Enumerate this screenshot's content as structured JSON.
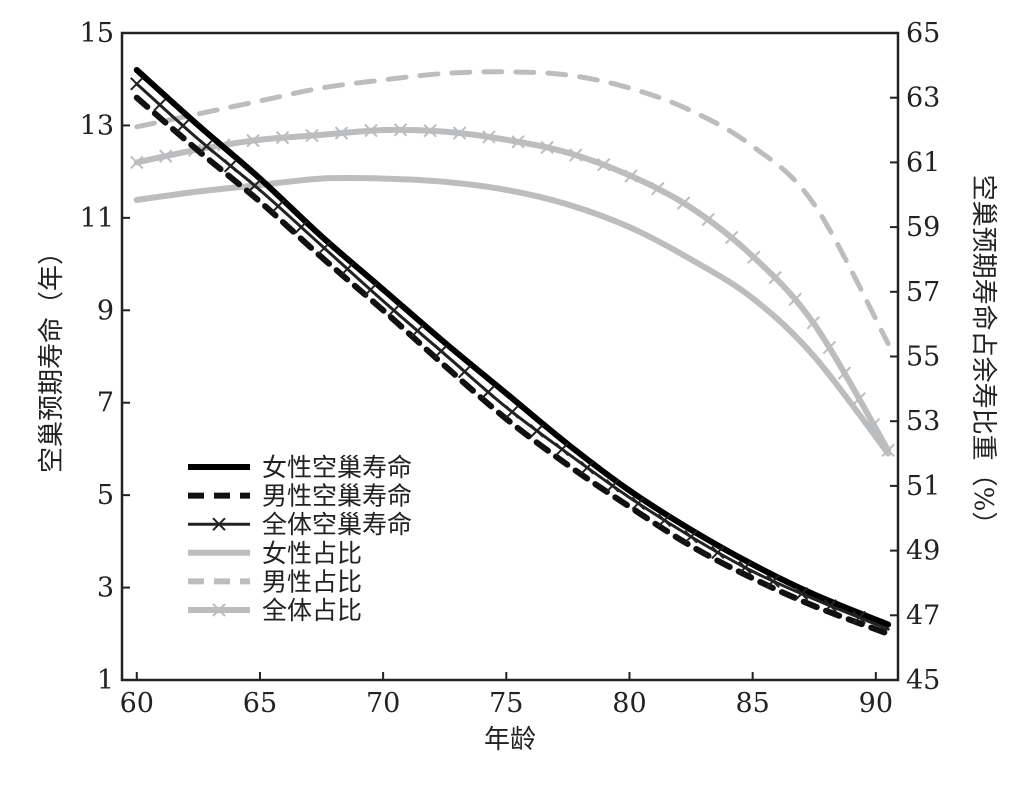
{
  "chart_data": {
    "type": "line",
    "xlabel": "年龄",
    "ylabel_left": "空巢预期寿命（年）",
    "ylabel_right": "空巢预期寿命占余寿比重（%）",
    "xlim": [
      59.4,
      90.9
    ],
    "ylim_left": [
      1,
      15
    ],
    "ylim_right": [
      45,
      65
    ],
    "xticks": [
      60,
      65,
      70,
      75,
      80,
      85,
      90
    ],
    "yticks_left": [
      1,
      3,
      5,
      7,
      9,
      11,
      13,
      15
    ],
    "yticks_right": [
      45,
      47,
      49,
      51,
      53,
      55,
      57,
      59,
      61,
      63,
      65
    ],
    "grid": false,
    "legend_position": "bottom-left",
    "x": [
      60,
      62.5,
      65,
      67.5,
      70,
      72.5,
      75,
      77.5,
      80,
      82.5,
      85,
      87.5,
      90.5
    ],
    "series": [
      {
        "name": "女性空巢寿命",
        "axis": "left",
        "color": "#000000",
        "style": "solid",
        "marker": "none",
        "values": [
          14.2,
          13.0,
          11.85,
          10.6,
          9.45,
          8.3,
          7.2,
          6.1,
          5.1,
          4.25,
          3.5,
          2.85,
          2.2
        ]
      },
      {
        "name": "男性空巢寿命",
        "axis": "left",
        "color": "#111111",
        "style": "dashed",
        "marker": "none",
        "values": [
          13.6,
          12.45,
          11.35,
          10.15,
          9.0,
          7.8,
          6.65,
          5.65,
          4.75,
          3.9,
          3.2,
          2.6,
          2.0
        ]
      },
      {
        "name": "全体空巢寿命",
        "axis": "left",
        "color": "#222222",
        "style": "solid",
        "marker": "x",
        "values": [
          13.9,
          12.7,
          11.6,
          10.4,
          9.2,
          8.05,
          6.9,
          5.9,
          4.95,
          4.1,
          3.35,
          2.75,
          2.1
        ]
      },
      {
        "name": "女性占比",
        "axis": "right",
        "color": "#bcbdbf",
        "style": "solid",
        "marker": "none",
        "values": [
          59.84,
          60.1,
          60.3,
          60.5,
          60.5,
          60.4,
          60.15,
          59.7,
          59.0,
          58.0,
          56.8,
          55.0,
          52.0
        ]
      },
      {
        "name": "男性占比",
        "axis": "right",
        "color": "#bcbdbf",
        "style": "dashed",
        "marker": "none",
        "values": [
          62.1,
          62.5,
          62.9,
          63.3,
          63.55,
          63.75,
          63.8,
          63.7,
          63.3,
          62.6,
          61.5,
          59.7,
          55.4
        ]
      },
      {
        "name": "全体占比",
        "axis": "right",
        "color": "#bcbdbf",
        "style": "solid",
        "marker": "x",
        "values": [
          61.0,
          61.4,
          61.7,
          61.85,
          62.0,
          61.95,
          61.7,
          61.3,
          60.6,
          59.6,
          58.1,
          56.0,
          52.1
        ]
      }
    ]
  }
}
